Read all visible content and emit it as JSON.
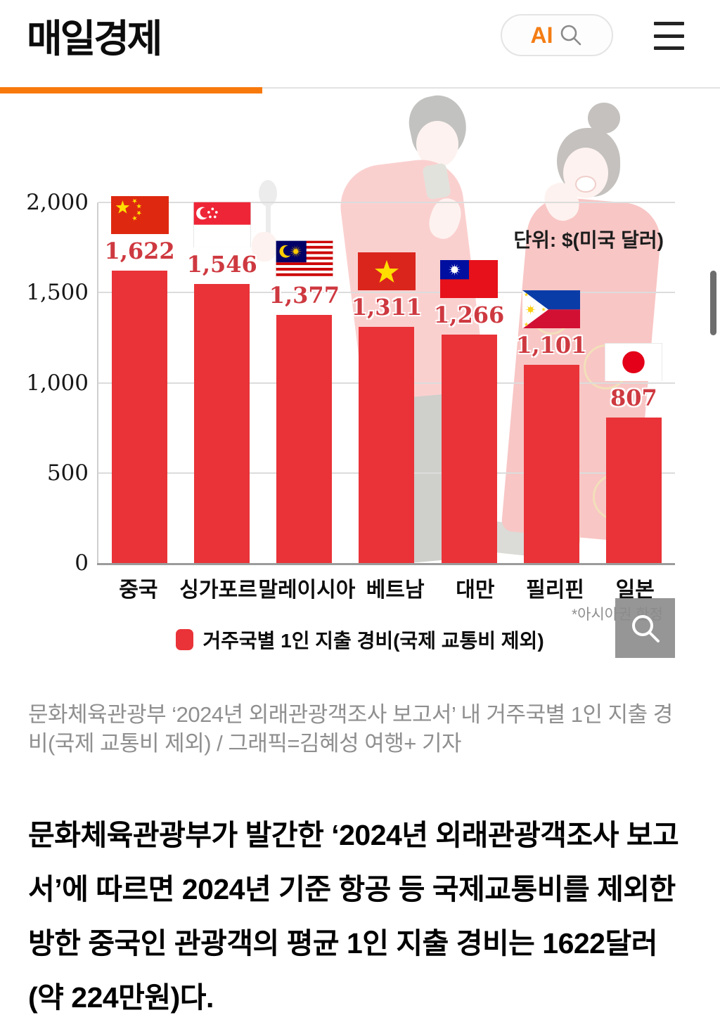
{
  "header": {
    "logo": "매일경제",
    "ai_search": {
      "label": "AI"
    }
  },
  "colors": {
    "accent_orange": "#f8790b",
    "bar_red": "#e93338",
    "value_label_red": "#ce3940"
  },
  "chart": {
    "unit_label": "단위: $(미국 달러)",
    "note": "*아시아권 한정",
    "legend_label": "거주국별 1인 지출 경비(국제 교통비 제외)"
  },
  "chart_data": {
    "type": "bar",
    "title": "거주국별 1인 지출 경비(국제 교통비 제외)",
    "unit": "$(미국 달러)",
    "categories": [
      "중국",
      "싱가포르",
      "말레이시아",
      "베트남",
      "대만",
      "필리핀",
      "일본"
    ],
    "values": [
      1622,
      1546,
      1377,
      1311,
      1266,
      1101,
      807
    ],
    "value_labels": [
      "1,622",
      "1,546",
      "1,377",
      "1,311",
      "1,266",
      "1,101",
      "807"
    ],
    "flags": [
      "china",
      "singapore",
      "malaysia",
      "vietnam",
      "taiwan",
      "philippines",
      "japan"
    ],
    "bar_color": "#e93338",
    "ylim": [
      0,
      2000
    ],
    "yticks": [
      0,
      500,
      1000,
      1500,
      2000
    ],
    "ytick_labels": [
      "0",
      "500",
      "1,000",
      "1,500",
      "2,000"
    ],
    "grid": true,
    "legend_position": "bottom",
    "note": "*아시아권 한정"
  },
  "caption": "문화체육관광부 ‘2024년 외래관광객조사 보고서’ 내 거주국별 1인 지출 경비(국제 교통비 제외) / 그래픽=김혜성 여행+ 기자",
  "article": {
    "paragraph": "문화체육관광부가 발간한 ‘2024년 외래관광객조사 보고서’에 따르면 2024년 기준 항공 등 국제교통비를 제외한 방한 중국인 관광객의 평균 1인 지출 경비는 1622달러(약 224만원)다."
  }
}
